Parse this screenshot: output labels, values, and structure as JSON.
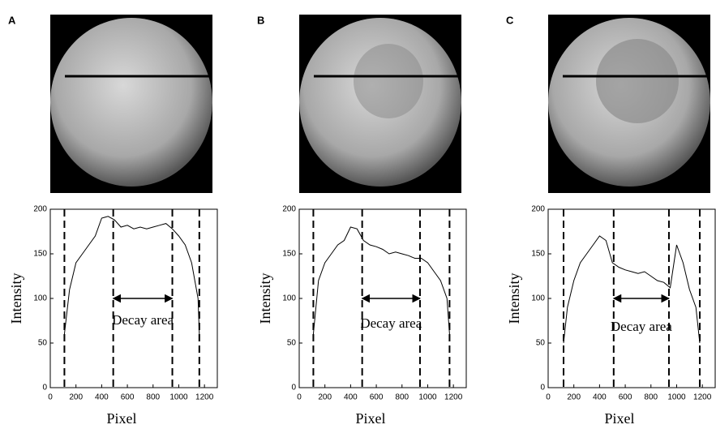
{
  "chart_data": [
    {
      "type": "line",
      "panel": "A",
      "xlabel": "Pixel",
      "ylabel": "Intensity",
      "annotation": "Decay area",
      "x": [
        110,
        150,
        200,
        250,
        300,
        350,
        400,
        450,
        500,
        550,
        600,
        650,
        700,
        750,
        800,
        850,
        900,
        950,
        1000,
        1050,
        1100,
        1150,
        1160
      ],
      "series": [
        {
          "color": "#000000",
          "values": [
            60,
            110,
            140,
            150,
            160,
            170,
            190,
            192,
            188,
            180,
            182,
            178,
            180,
            178,
            180,
            182,
            184,
            178,
            170,
            160,
            140,
            100,
            60
          ]
        }
      ],
      "vlines": [
        110,
        490,
        950,
        1160
      ],
      "arrow": {
        "x": [
          490,
          950
        ],
        "y": 100
      },
      "xlim": [
        0,
        1300
      ],
      "ylim": [
        0,
        200
      ],
      "xticks": [
        0,
        200,
        400,
        600,
        800,
        1000,
        1200
      ],
      "yticks": [
        0,
        50,
        100,
        150,
        200
      ]
    },
    {
      "type": "line",
      "panel": "B",
      "xlabel": "Pixel",
      "ylabel": "Intensity",
      "annotation": "Decay area",
      "x": [
        110,
        150,
        200,
        250,
        300,
        350,
        400,
        450,
        500,
        550,
        600,
        650,
        700,
        750,
        800,
        850,
        900,
        950,
        1000,
        1050,
        1100,
        1150,
        1170
      ],
      "series": [
        {
          "color": "#000000",
          "values": [
            60,
            120,
            140,
            150,
            160,
            165,
            180,
            178,
            165,
            160,
            158,
            155,
            150,
            152,
            150,
            148,
            145,
            145,
            140,
            130,
            120,
            100,
            60
          ]
        }
      ],
      "vlines": [
        110,
        490,
        940,
        1170
      ],
      "arrow": {
        "x": [
          490,
          940
        ],
        "y": 100
      },
      "xlim": [
        0,
        1300
      ],
      "ylim": [
        0,
        200
      ],
      "xticks": [
        0,
        200,
        400,
        600,
        800,
        1000,
        1200
      ],
      "yticks": [
        0,
        50,
        100,
        150,
        200
      ]
    },
    {
      "type": "line",
      "panel": "C",
      "xlabel": "Pixel",
      "ylabel": "Intensity",
      "annotation": "Decay area",
      "x": [
        120,
        150,
        200,
        250,
        300,
        350,
        400,
        450,
        500,
        550,
        600,
        650,
        700,
        750,
        800,
        850,
        900,
        950,
        1000,
        1050,
        1100,
        1150,
        1180
      ],
      "series": [
        {
          "color": "#000000",
          "values": [
            50,
            90,
            120,
            140,
            150,
            160,
            170,
            165,
            140,
            135,
            132,
            130,
            128,
            130,
            125,
            120,
            118,
            112,
            160,
            140,
            110,
            90,
            50
          ]
        }
      ],
      "vlines": [
        120,
        510,
        940,
        1180
      ],
      "arrow": {
        "x": [
          510,
          940
        ],
        "y": 100
      },
      "xlim": [
        0,
        1300
      ],
      "ylim": [
        0,
        200
      ],
      "xticks": [
        0,
        200,
        400,
        600,
        800,
        1000,
        1200
      ],
      "yticks": [
        0,
        50,
        100,
        150,
        200
      ]
    }
  ]
}
